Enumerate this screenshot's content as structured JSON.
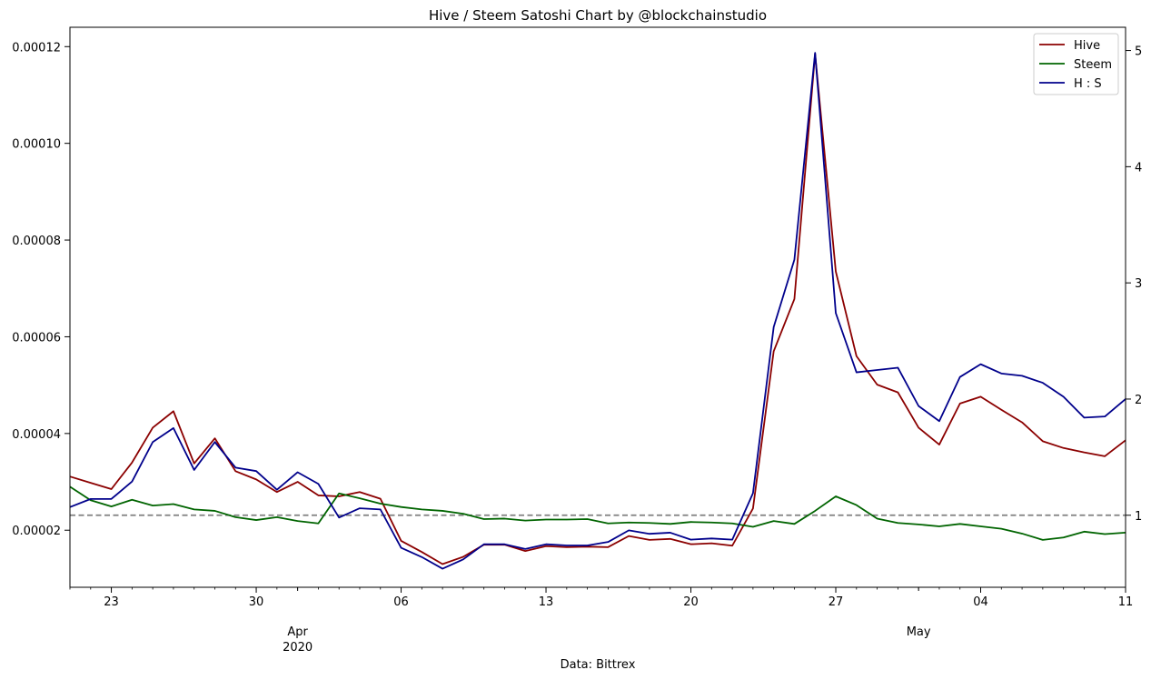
{
  "chart_data": {
    "type": "line",
    "title": "Hive / Steem Satoshi Chart by @blockchainstudio",
    "xlabel": "Data: Bittrex",
    "x_start": "2020-03-21",
    "x": [
      "2020-03-21",
      "2020-03-22",
      "2020-03-23",
      "2020-03-24",
      "2020-03-25",
      "2020-03-26",
      "2020-03-27",
      "2020-03-28",
      "2020-03-29",
      "2020-03-30",
      "2020-03-31",
      "2020-04-01",
      "2020-04-02",
      "2020-04-03",
      "2020-04-04",
      "2020-04-05",
      "2020-04-06",
      "2020-04-07",
      "2020-04-08",
      "2020-04-09",
      "2020-04-10",
      "2020-04-11",
      "2020-04-12",
      "2020-04-13",
      "2020-04-14",
      "2020-04-15",
      "2020-04-16",
      "2020-04-17",
      "2020-04-18",
      "2020-04-19",
      "2020-04-20",
      "2020-04-21",
      "2020-04-22",
      "2020-04-23",
      "2020-04-24",
      "2020-04-25",
      "2020-04-26",
      "2020-04-27",
      "2020-04-28",
      "2020-04-29",
      "2020-04-30",
      "2020-05-01",
      "2020-05-02",
      "2020-05-03",
      "2020-05-04",
      "2020-05-05",
      "2020-05-06",
      "2020-05-07",
      "2020-05-08",
      "2020-05-09",
      "2020-05-10",
      "2020-05-11"
    ],
    "xlim": [
      "2020-03-21",
      "2020-05-11"
    ],
    "x_major_ticks": [
      {
        "date": "2020-03-23",
        "label": "23"
      },
      {
        "date": "2020-03-30",
        "label": "30"
      },
      {
        "date": "2020-04-06",
        "label": "06"
      },
      {
        "date": "2020-04-13",
        "label": "13"
      },
      {
        "date": "2020-04-20",
        "label": "20"
      },
      {
        "date": "2020-04-27",
        "label": "27"
      },
      {
        "date": "2020-05-04",
        "label": "04"
      },
      {
        "date": "2020-05-11",
        "label": "11"
      }
    ],
    "x_minor_ticks": [
      {
        "date": "2020-04-01",
        "label": "Apr",
        "label2": "2020"
      },
      {
        "date": "2020-05-01",
        "label": "May",
        "label2": ""
      }
    ],
    "y_left": {
      "lim": [
        8.2e-06,
        0.000124
      ],
      "ticks": [
        2e-05,
        4e-05,
        6e-05,
        8e-05,
        0.0001,
        0.00012
      ],
      "tick_labels": [
        "0.00002",
        "0.00004",
        "0.00006",
        "0.00008",
        "0.00010",
        "0.00012"
      ]
    },
    "y_right": {
      "lim": [
        0.38,
        5.2
      ],
      "ticks": [
        1,
        2,
        3,
        4,
        5
      ],
      "tick_labels": [
        "1",
        "2",
        "3",
        "4",
        "5"
      ]
    },
    "reference_line": {
      "axis": "right",
      "value": 1.0,
      "style": "dashed",
      "color": "#808080"
    },
    "legend": {
      "location": "top-right"
    },
    "series": [
      {
        "name": "Hive",
        "axis": "left",
        "color": "#8b0000",
        "values": [
          3.11e-05,
          2.98e-05,
          2.85e-05,
          3.4e-05,
          4.12e-05,
          4.46e-05,
          3.38e-05,
          3.9e-05,
          3.22e-05,
          3.05e-05,
          2.79e-05,
          3e-05,
          2.72e-05,
          2.7e-05,
          2.79e-05,
          2.65e-05,
          1.78e-05,
          1.55e-05,
          1.3e-05,
          1.45e-05,
          1.7e-05,
          1.7e-05,
          1.57e-05,
          1.67e-05,
          1.65e-05,
          1.66e-05,
          1.65e-05,
          1.88e-05,
          1.8e-05,
          1.82e-05,
          1.71e-05,
          1.73e-05,
          1.68e-05,
          2.45e-05,
          5.7e-05,
          6.78e-05,
          0.0001185,
          7.35e-05,
          5.6e-05,
          5.01e-05,
          4.85e-05,
          4.12e-05,
          3.77e-05,
          4.62e-05,
          4.76e-05,
          4.49e-05,
          4.23e-05,
          3.84e-05,
          3.7e-05,
          3.61e-05,
          3.53e-05,
          3.86e-05
        ]
      },
      {
        "name": "Steem",
        "axis": "left",
        "color": "#006400",
        "values": [
          2.9e-05,
          2.62e-05,
          2.49e-05,
          2.63e-05,
          2.51e-05,
          2.54e-05,
          2.43e-05,
          2.4e-05,
          2.27e-05,
          2.21e-05,
          2.27e-05,
          2.19e-05,
          2.14e-05,
          2.76e-05,
          2.66e-05,
          2.55e-05,
          2.48e-05,
          2.43e-05,
          2.4e-05,
          2.34e-05,
          2.23e-05,
          2.24e-05,
          2.2e-05,
          2.22e-05,
          2.22e-05,
          2.23e-05,
          2.14e-05,
          2.16e-05,
          2.15e-05,
          2.13e-05,
          2.17e-05,
          2.16e-05,
          2.14e-05,
          2.07e-05,
          2.19e-05,
          2.13e-05,
          2.4e-05,
          2.7e-05,
          2.52e-05,
          2.24e-05,
          2.15e-05,
          2.12e-05,
          2.08e-05,
          2.13e-05,
          2.08e-05,
          2.03e-05,
          1.93e-05,
          1.8e-05,
          1.85e-05,
          1.97e-05,
          1.92e-05,
          1.95e-05
        ]
      },
      {
        "name": "H : S",
        "axis": "right",
        "color": "#00008b",
        "values": [
          1.07,
          1.14,
          1.14,
          1.29,
          1.63,
          1.75,
          1.39,
          1.63,
          1.41,
          1.38,
          1.22,
          1.37,
          1.27,
          0.98,
          1.06,
          1.05,
          0.72,
          0.64,
          0.54,
          0.62,
          0.75,
          0.75,
          0.71,
          0.75,
          0.74,
          0.74,
          0.77,
          0.87,
          0.84,
          0.85,
          0.79,
          0.8,
          0.79,
          1.19,
          2.62,
          3.2,
          4.98,
          2.74,
          2.23,
          2.25,
          2.27,
          1.94,
          1.81,
          2.19,
          2.3,
          2.22,
          2.2,
          2.14,
          2.02,
          1.84,
          1.85,
          2.0
        ]
      }
    ]
  }
}
